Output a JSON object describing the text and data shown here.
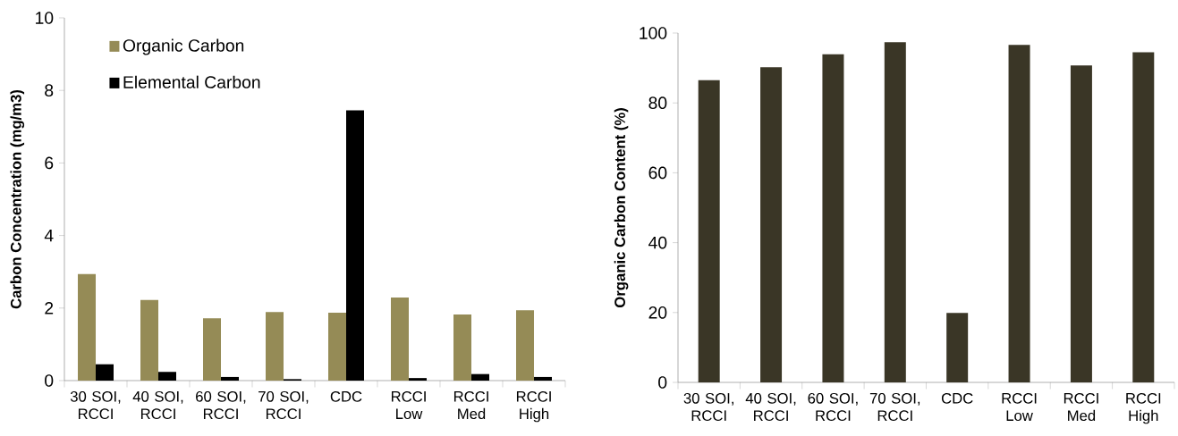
{
  "chart_data": [
    {
      "type": "bar",
      "ylabel": "Carbon Concentration (mg/m3)",
      "categories": [
        "30 SOI, RCCI",
        "40 SOI, RCCI",
        "60 SOI, RCCI",
        "70 SOI, RCCI",
        "CDC",
        "RCCI Low",
        "RCCI Med",
        "RCCI High"
      ],
      "ylim": [
        0,
        10
      ],
      "yticks": [
        0,
        2,
        4,
        6,
        8,
        10
      ],
      "legend": "top left",
      "grid": false,
      "series": [
        {
          "name": "Organic Carbon",
          "color": "#958b56",
          "values": [
            2.94,
            2.22,
            1.72,
            1.89,
            1.87,
            2.29,
            1.82,
            1.94
          ]
        },
        {
          "name": "Elemental Carbon",
          "color": "#000000",
          "values": [
            0.45,
            0.24,
            0.1,
            0.04,
            7.45,
            0.07,
            0.18,
            0.1
          ]
        }
      ]
    },
    {
      "type": "bar",
      "ylabel": "Organic Carbon Content (%)",
      "categories": [
        "30 SOI, RCCI",
        "40 SOI, RCCI",
        "60 SOI, RCCI",
        "70 SOI, RCCI",
        "CDC",
        "RCCI Low",
        "RCCI Med",
        "RCCI High"
      ],
      "ylim": [
        0,
        100
      ],
      "yticks": [
        0,
        20,
        40,
        60,
        80,
        100
      ],
      "grid": false,
      "color": "#3a3626",
      "values": [
        86.5,
        90.2,
        93.9,
        97.4,
        19.9,
        96.6,
        90.7,
        94.5
      ]
    }
  ]
}
